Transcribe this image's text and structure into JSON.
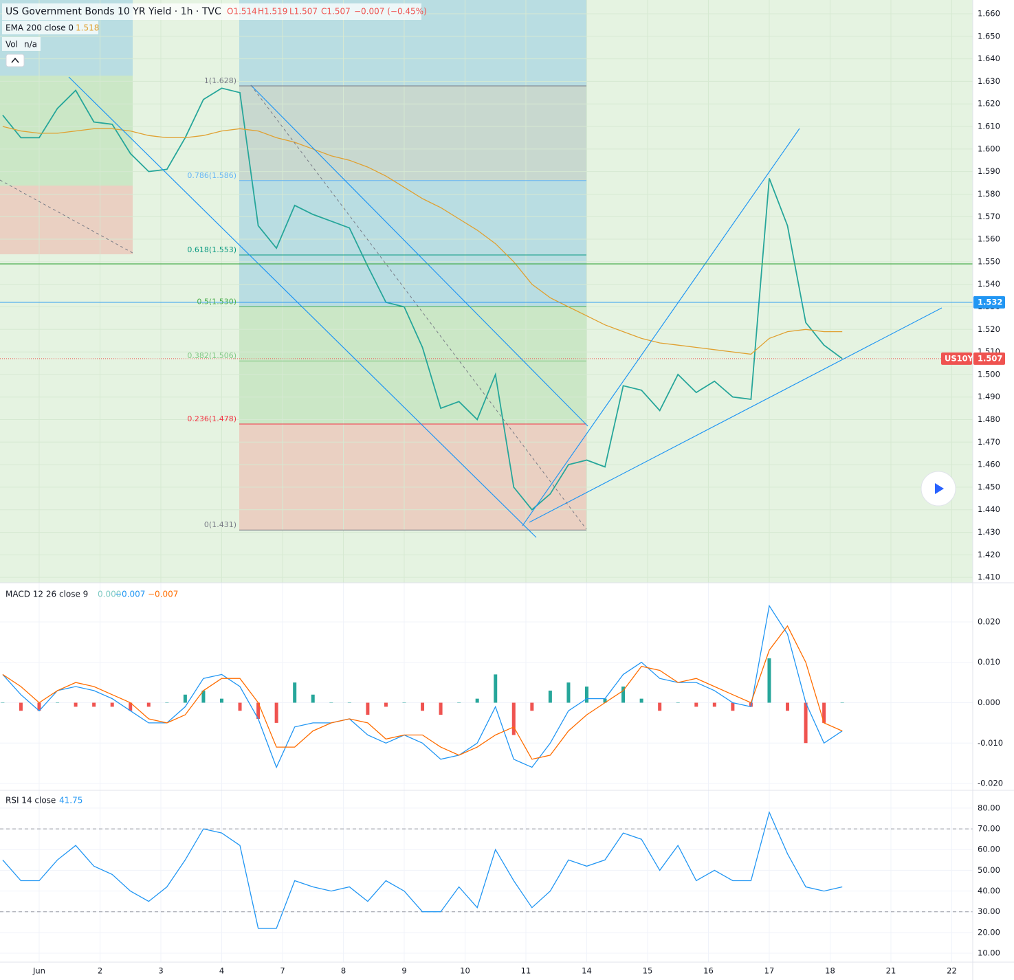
{
  "chart_data": [
    {
      "type": "line",
      "title": "US Government Bonds 10 YR Yield · 1h · TVC",
      "legend_values": [
        "O1.514",
        "H1.519",
        "L1.507",
        "C1.507",
        "−0.007 (−0.45%)"
      ],
      "vol_legend": [
        "Vol",
        "n/a"
      ],
      "x": [
        -0.6,
        -0.3,
        0,
        0.3,
        0.6,
        0.9,
        1.2,
        1.5,
        1.8,
        2.1,
        2.4,
        2.7,
        3.0,
        3.3,
        3.6,
        3.9,
        4.2,
        4.5,
        4.8,
        5.1,
        5.4,
        5.7,
        6.0,
        6.3,
        6.6,
        6.9,
        7.2,
        7.5,
        7.8,
        8.1,
        8.4,
        8.7,
        9.0,
        9.3,
        9.6,
        9.9,
        10.2,
        10.5,
        10.8,
        11.1,
        11.4,
        11.7,
        12.0,
        12.3,
        12.6,
        12.9,
        13.2
      ],
      "xlim": [
        -0.644,
        15.345
      ],
      "ylim": [
        1.4076,
        1.6661
      ],
      "yticks": [
        {
          "value": 1.41,
          "label": "1.410"
        },
        {
          "value": 1.42,
          "label": "1.420"
        },
        {
          "value": 1.43,
          "label": "1.430"
        },
        {
          "value": 1.44,
          "label": "1.440"
        },
        {
          "value": 1.45,
          "label": "1.450"
        },
        {
          "value": 1.46,
          "label": "1.460"
        },
        {
          "value": 1.47,
          "label": "1.470"
        },
        {
          "value": 1.48,
          "label": "1.480"
        },
        {
          "value": 1.49,
          "label": "1.490"
        },
        {
          "value": 1.5,
          "label": "1.500"
        },
        {
          "value": 1.51,
          "label": "1.510"
        },
        {
          "value": 1.52,
          "label": "1.520"
        },
        {
          "value": 1.53,
          "label": "1.530"
        },
        {
          "value": 1.54,
          "label": "1.540"
        },
        {
          "value": 1.55,
          "label": "1.550"
        },
        {
          "value": 1.56,
          "label": "1.560"
        },
        {
          "value": 1.57,
          "label": "1.570"
        },
        {
          "value": 1.58,
          "label": "1.580"
        },
        {
          "value": 1.59,
          "label": "1.590"
        },
        {
          "value": 1.6,
          "label": "1.600"
        },
        {
          "value": 1.61,
          "label": "1.610"
        },
        {
          "value": 1.62,
          "label": "1.620"
        },
        {
          "value": 1.63,
          "label": "1.630"
        },
        {
          "value": 1.64,
          "label": "1.640"
        },
        {
          "value": 1.65,
          "label": "1.650"
        },
        {
          "value": 1.66,
          "label": "1.660"
        }
      ],
      "grid": true,
      "series": [
        {
          "color": "#26a69a",
          "values": [
            1.615,
            1.605,
            1.605,
            1.618,
            1.626,
            1.612,
            1.611,
            1.598,
            1.59,
            1.591,
            1.605,
            1.622,
            1.627,
            1.625,
            1.566,
            1.556,
            1.575,
            1.571,
            1.568,
            1.565,
            1.548,
            1.532,
            1.53,
            1.512,
            1.485,
            1.488,
            1.48,
            1.5,
            1.45,
            1.44,
            1.447,
            1.46,
            1.462,
            1.459,
            1.495,
            1.493,
            1.484,
            1.5,
            1.492,
            1.497,
            1.49,
            1.489,
            1.587,
            1.566,
            1.523,
            1.513,
            1.507
          ]
        },
        {
          "name": "EMA 200 close 0",
          "last_label": "1.518",
          "color": "#e0a030",
          "values": [
            1.61,
            1.608,
            1.607,
            1.607,
            1.608,
            1.609,
            1.609,
            1.608,
            1.606,
            1.605,
            1.605,
            1.606,
            1.608,
            1.609,
            1.608,
            1.605,
            1.603,
            1.6,
            1.597,
            1.595,
            1.592,
            1.588,
            1.583,
            1.578,
            1.574,
            1.569,
            1.564,
            1.558,
            1.55,
            1.54,
            1.534,
            1.53,
            1.526,
            1.522,
            1.519,
            1.516,
            1.514,
            1.513,
            1.512,
            1.511,
            1.51,
            1.509,
            1.516,
            1.519,
            1.52,
            1.519,
            1.519
          ]
        }
      ],
      "fib_levels": [
        {
          "label": "1(1.628)",
          "value": 1.628,
          "color": "#787b86"
        },
        {
          "label": "0.786(1.586)",
          "value": 1.586,
          "color": "#64b5f6"
        },
        {
          "label": "0.618(1.553)",
          "value": 1.553,
          "color": "#089981"
        },
        {
          "label": "0.5(1.530)",
          "value": 1.53,
          "color": "#4caf50"
        },
        {
          "label": "0.382(1.506)",
          "value": 1.506,
          "color": "#81c784"
        },
        {
          "label": "0.236(1.478)",
          "value": 1.478,
          "color": "#f23645"
        },
        {
          "label": "0(1.431)",
          "value": 1.431,
          "color": "#787b86"
        }
      ],
      "price_tags": [
        {
          "label": "1.532",
          "value": 1.532,
          "color": "#2196f3"
        },
        {
          "name": "US10Y",
          "label": "1.507",
          "value": 1.507,
          "color": "#ef5350"
        }
      ]
    },
    {
      "type": "macd",
      "title": "MACD 12 26 close 9",
      "x": [
        -0.6,
        -0.3,
        0,
        0.3,
        0.6,
        0.9,
        1.2,
        1.5,
        1.8,
        2.1,
        2.4,
        2.7,
        3.0,
        3.3,
        3.6,
        3.9,
        4.2,
        4.5,
        4.8,
        5.1,
        5.4,
        5.7,
        6.0,
        6.3,
        6.6,
        6.9,
        7.2,
        7.5,
        7.8,
        8.1,
        8.4,
        8.7,
        9.0,
        9.3,
        9.6,
        9.9,
        10.2,
        10.5,
        10.8,
        11.1,
        11.4,
        11.7,
        12.0,
        12.3,
        12.6,
        12.9,
        13.2
      ],
      "xlim": [
        -0.644,
        15.345
      ],
      "ylim": [
        -0.0217,
        0.0297
      ],
      "yticks": [
        {
          "value": 0.02,
          "label": "0.020"
        },
        {
          "value": 0.01,
          "label": "0.010"
        },
        {
          "value": 0,
          "label": "0.000"
        },
        {
          "value": -0.01,
          "label": "-0.010"
        },
        {
          "value": -0.02,
          "label": "-0.020"
        }
      ],
      "series": [
        {
          "type": "bar",
          "last_label": "0.000",
          "color": "#b2dfdb",
          "up_color": "#26a69a",
          "down_color": "#ef5350",
          "values": [
            0,
            -0.002,
            -0.002,
            0,
            -0.001,
            -0.001,
            -0.001,
            -0.002,
            -0.001,
            0,
            0.002,
            0.003,
            0.001,
            -0.002,
            -0.004,
            -0.005,
            0.005,
            0.002,
            0,
            0,
            -0.003,
            -0.001,
            0,
            -0.002,
            -0.003,
            0,
            0.001,
            0.007,
            -0.008,
            -0.002,
            0.003,
            0.005,
            0.004,
            0.001,
            0.004,
            0.001,
            -0.002,
            0,
            -0.001,
            -0.001,
            -0.002,
            -0.001,
            0.011,
            -0.002,
            -0.01,
            -0.005,
            0
          ]
        },
        {
          "type": "line",
          "last_label": "−0.007",
          "color": "#2196f3",
          "values": [
            0.007,
            0.002,
            -0.002,
            0.003,
            0.004,
            0.003,
            0.001,
            -0.002,
            -0.005,
            -0.005,
            -0.001,
            0.006,
            0.007,
            0.004,
            -0.004,
            -0.016,
            -0.006,
            -0.005,
            -0.005,
            -0.004,
            -0.008,
            -0.01,
            -0.008,
            -0.01,
            -0.014,
            -0.013,
            -0.01,
            -0.001,
            -0.014,
            -0.016,
            -0.01,
            -0.002,
            0.001,
            0.001,
            0.007,
            0.01,
            0.006,
            0.005,
            0.005,
            0.003,
            0,
            -0.001,
            0.024,
            0.017,
            0,
            -0.01,
            -0.007
          ]
        },
        {
          "type": "line",
          "last_label": "−0.007",
          "color": "#ff6d00",
          "values": [
            0.007,
            0.004,
            0,
            0.003,
            0.005,
            0.004,
            0.002,
            0,
            -0.004,
            -0.005,
            -0.003,
            0.003,
            0.006,
            0.006,
            0,
            -0.011,
            -0.011,
            -0.007,
            -0.005,
            -0.004,
            -0.005,
            -0.009,
            -0.008,
            -0.008,
            -0.011,
            -0.013,
            -0.011,
            -0.008,
            -0.006,
            -0.014,
            -0.013,
            -0.007,
            -0.003,
            0,
            0.003,
            0.009,
            0.008,
            0.005,
            0.006,
            0.004,
            0.002,
            0,
            0.013,
            0.019,
            0.01,
            -0.005,
            -0.007
          ]
        }
      ]
    },
    {
      "type": "line",
      "title": "RSI 14 close",
      "x": [
        -0.6,
        -0.3,
        0,
        0.3,
        0.6,
        0.9,
        1.2,
        1.5,
        1.8,
        2.1,
        2.4,
        2.7,
        3.0,
        3.3,
        3.6,
        3.9,
        4.2,
        4.5,
        4.8,
        5.1,
        5.4,
        5.7,
        6.0,
        6.3,
        6.6,
        6.9,
        7.2,
        7.5,
        7.8,
        8.1,
        8.4,
        8.7,
        9.0,
        9.3,
        9.6,
        9.9,
        10.2,
        10.5,
        10.8,
        11.1,
        11.4,
        11.7,
        12.0,
        12.3,
        12.6,
        12.9,
        13.2
      ],
      "xlim": [
        -0.644,
        15.345
      ],
      "ylim": [
        5.7,
        88.6
      ],
      "yticks": [
        {
          "value": 80,
          "label": "80.00"
        },
        {
          "value": 70,
          "label": "70.00"
        },
        {
          "value": 60,
          "label": "60.00"
        },
        {
          "value": 50,
          "label": "50.00"
        },
        {
          "value": 40,
          "label": "40.00"
        },
        {
          "value": 30,
          "label": "30.00"
        },
        {
          "value": 20,
          "label": "20.00"
        },
        {
          "value": 10,
          "label": "10.00"
        }
      ],
      "levels": [
        70,
        30
      ],
      "xticks": [
        {
          "value": 0,
          "label": "Jun"
        },
        {
          "value": 1,
          "label": "2"
        },
        {
          "value": 2,
          "label": "3"
        },
        {
          "value": 3,
          "label": "4"
        },
        {
          "value": 4,
          "label": "7"
        },
        {
          "value": 5,
          "label": "8"
        },
        {
          "value": 6,
          "label": "9"
        },
        {
          "value": 7,
          "label": "10"
        },
        {
          "value": 8,
          "label": "11"
        },
        {
          "value": 9,
          "label": "14"
        },
        {
          "value": 10,
          "label": "15"
        },
        {
          "value": 11,
          "label": "16"
        },
        {
          "value": 12,
          "label": "17"
        },
        {
          "value": 13,
          "label": "18"
        },
        {
          "value": 14,
          "label": "21"
        },
        {
          "value": 15,
          "label": "22"
        }
      ],
      "series": [
        {
          "type": "line",
          "last_label": "41.75",
          "color": "#2196f3",
          "values": [
            55,
            45,
            45,
            55,
            62,
            52,
            48,
            40,
            35,
            42,
            55,
            70,
            68,
            62,
            22,
            22,
            45,
            42,
            40,
            42,
            35,
            45,
            40,
            30,
            30,
            42,
            32,
            60,
            45,
            32,
            40,
            55,
            52,
            55,
            68,
            65,
            50,
            62,
            45,
            50,
            45,
            45,
            78,
            58,
            42,
            40,
            42
          ]
        }
      ]
    }
  ]
}
